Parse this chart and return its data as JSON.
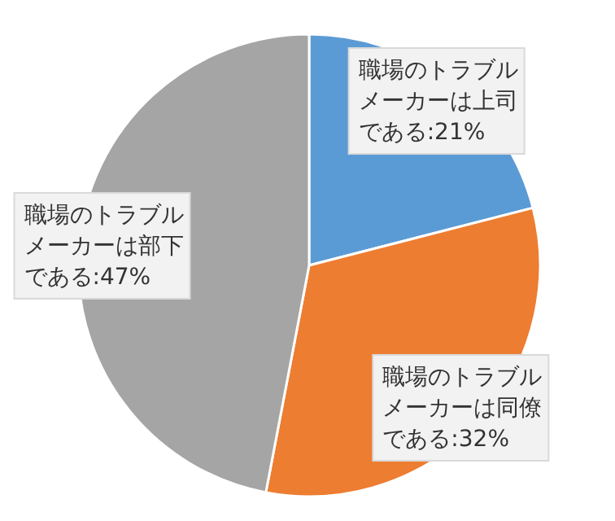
{
  "chart_data": {
    "type": "pie",
    "categories": [
      "職場のトラブルメーカーは上司である",
      "職場のトラブルメーカーは同僚である",
      "職場のトラブルメーカーは部下である"
    ],
    "values": [
      21,
      32,
      47
    ],
    "colors": [
      "#5b9bd5",
      "#ed7d31",
      "#a5a5a5"
    ],
    "value_labels": [
      "21%",
      "32%",
      "47%"
    ]
  }
}
